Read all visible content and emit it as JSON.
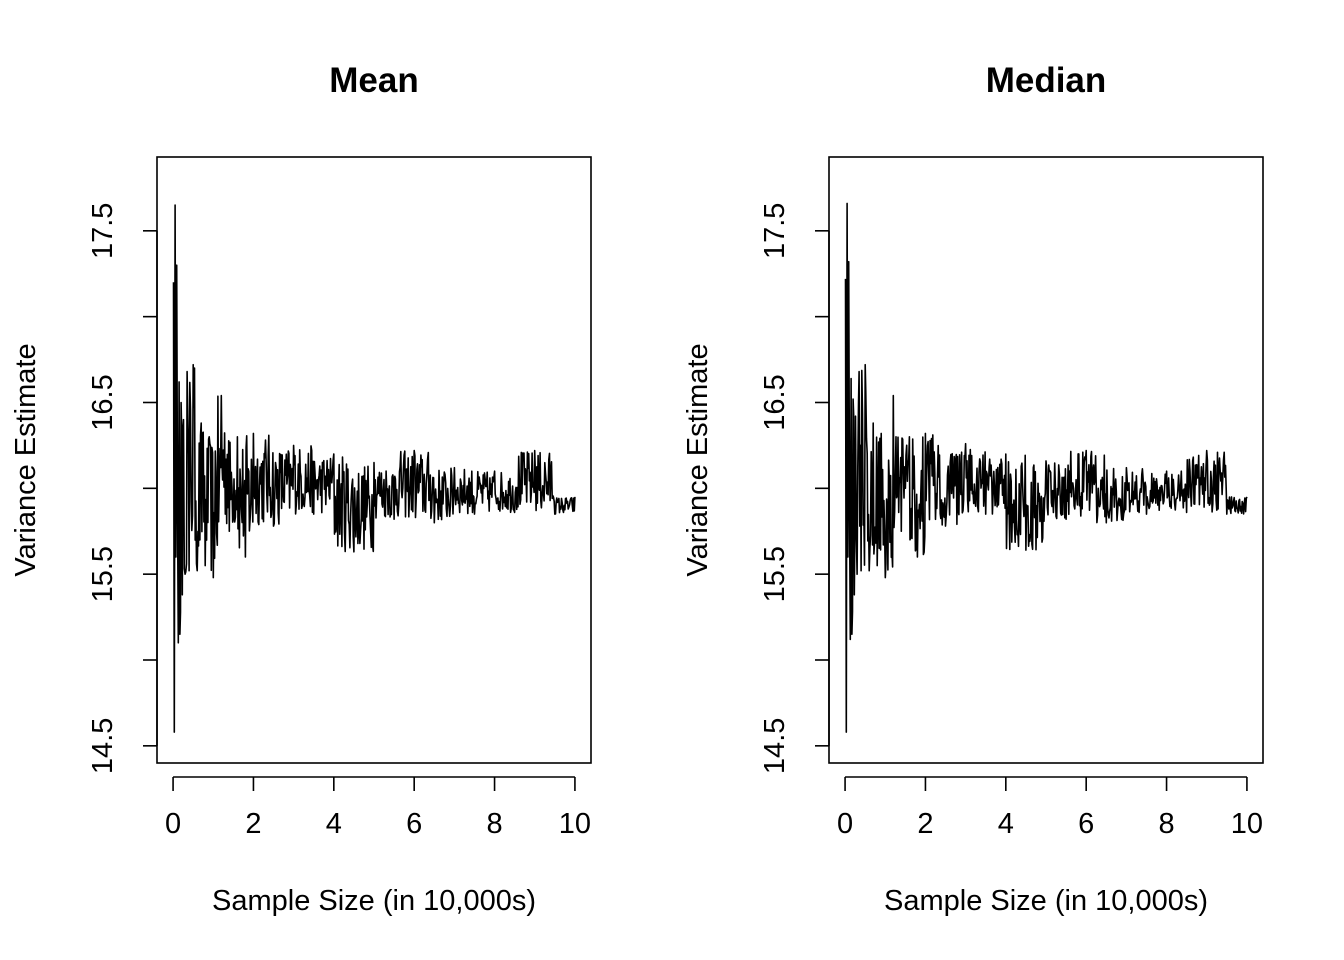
{
  "chart_data": [
    {
      "type": "line",
      "title": "Mean",
      "xlabel": "Sample Size (in 10,000s)",
      "ylabel": "Variance Estimate",
      "xlim": [
        -0.4,
        10.4
      ],
      "ylim": [
        14.4,
        17.93
      ],
      "xticks": [
        0,
        2,
        4,
        6,
        8,
        10
      ],
      "xtick_labels": [
        "0",
        "2",
        "4",
        "6",
        "8",
        "10"
      ],
      "yticks": [
        14.5,
        15,
        15.5,
        16,
        16.5,
        17,
        17.5
      ],
      "ytick_labels": [
        "14.5",
        "",
        "15.5",
        "",
        "16.5",
        "",
        "17.5"
      ],
      "grid": false,
      "color": "#000000",
      "series": [
        {
          "x": [
            0.01,
            0.03,
            0.05,
            0.07,
            0.09,
            0.11,
            0.13,
            0.15,
            0.17,
            0.2,
            0.23,
            0.26,
            0.3,
            0.35,
            0.4,
            0.5,
            0.6,
            0.7,
            0.8,
            0.9,
            1.0,
            1.2,
            1.4,
            1.6,
            1.8,
            2.0,
            2.5,
            3.0,
            3.5,
            4.0,
            4.5,
            5.0,
            5.5,
            6.0,
            6.5,
            7.0,
            7.5,
            8.0,
            8.5,
            9.0,
            9.5,
            10.0
          ],
          "y": [
            17.2,
            14.58,
            17.65,
            15.6,
            17.3,
            15.9,
            15.1,
            16.62,
            15.15,
            16.5,
            15.38,
            16.4,
            15.5,
            16.68,
            15.52,
            16.72,
            15.52,
            16.38,
            15.55,
            16.3,
            15.48,
            16.54,
            15.75,
            16.3,
            15.6,
            16.32,
            15.78,
            16.25,
            15.85,
            16.2,
            15.63,
            16.15,
            15.82,
            16.22,
            15.8,
            16.12,
            15.85,
            16.1,
            15.86,
            16.22,
            15.85,
            15.95
          ]
        }
      ]
    },
    {
      "type": "line",
      "title": "Median",
      "xlabel": "Sample Size (in 10,000s)",
      "ylabel": "Variance Estimate",
      "xlim": [
        -0.4,
        10.4
      ],
      "ylim": [
        14.4,
        17.93
      ],
      "xticks": [
        0,
        2,
        4,
        6,
        8,
        10
      ],
      "xtick_labels": [
        "0",
        "2",
        "4",
        "6",
        "8",
        "10"
      ],
      "yticks": [
        14.5,
        15,
        15.5,
        16,
        16.5,
        17,
        17.5
      ],
      "ytick_labels": [
        "14.5",
        "",
        "15.5",
        "",
        "16.5",
        "",
        "17.5"
      ],
      "grid": false,
      "color": "#000000",
      "series": [
        {
          "x": [
            0.01,
            0.03,
            0.05,
            0.07,
            0.09,
            0.11,
            0.13,
            0.15,
            0.17,
            0.2,
            0.23,
            0.26,
            0.3,
            0.35,
            0.4,
            0.5,
            0.6,
            0.7,
            0.8,
            0.9,
            1.0,
            1.2,
            1.4,
            1.6,
            1.8,
            2.0,
            2.5,
            3.0,
            3.5,
            4.0,
            4.5,
            5.0,
            5.5,
            6.0,
            6.5,
            7.0,
            7.5,
            8.0,
            8.5,
            9.0,
            9.5,
            10.0
          ],
          "y": [
            17.22,
            14.58,
            17.66,
            15.6,
            17.32,
            15.92,
            15.12,
            16.64,
            15.15,
            16.52,
            15.38,
            16.42,
            15.5,
            16.68,
            15.52,
            16.72,
            15.52,
            16.38,
            15.55,
            16.32,
            15.48,
            16.54,
            15.75,
            16.3,
            15.6,
            16.32,
            15.78,
            16.26,
            15.85,
            16.2,
            15.64,
            16.16,
            15.82,
            16.22,
            15.8,
            16.12,
            15.85,
            16.1,
            15.86,
            16.22,
            15.85,
            15.95
          ]
        }
      ]
    }
  ]
}
